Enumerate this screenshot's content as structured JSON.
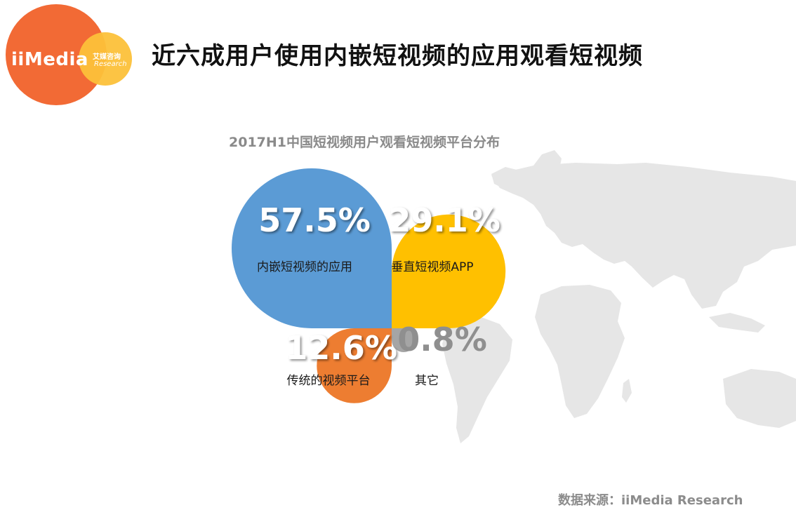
{
  "logo": {
    "brand": "iiMedia",
    "brand_cn": "艾媒咨询",
    "brand_en": "Research"
  },
  "page_title": "近六成用户使用内嵌短视频的应用观看短视频",
  "source": "数据来源：iiMedia Research",
  "colors": {
    "blue": "#5b9bd5",
    "yellow": "#ffc000",
    "orange": "#ed7d31",
    "gray": "#a5a5a5",
    "map": "#e6e6e6"
  },
  "chart_data": {
    "type": "pie",
    "title": "2017H1中国短视频用户观看短视频平台分布",
    "slices": [
      {
        "label": "内嵌短视频的应用",
        "value": 57.5,
        "display": "57.5%",
        "color": "#5b9bd5"
      },
      {
        "label": "垂直短视频APP",
        "value": 29.1,
        "display": "29.1%",
        "color": "#ffc000"
      },
      {
        "label": "传统的视频平台",
        "value": 12.6,
        "display": "12.6%",
        "color": "#ed7d31"
      },
      {
        "label": "其它",
        "value": 0.8,
        "display": "0.8%",
        "color": "#a5a5a5"
      }
    ]
  }
}
